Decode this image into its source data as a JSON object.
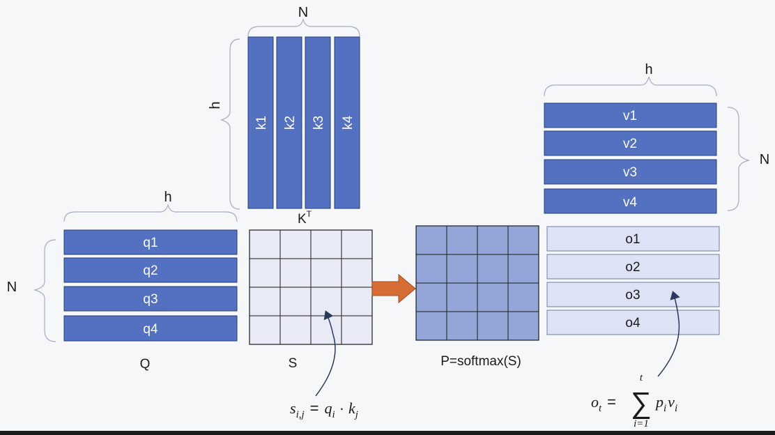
{
  "colors": {
    "block_fill": "#5470c0",
    "block_stroke": "#253f7a",
    "s_fill": "#e8eaf6",
    "p_fill": "#94a5d8",
    "o_fill": "#dde3f5",
    "arrow_fill": "#d56d35",
    "brace": "#a4acc4",
    "text_on_dark": "#ffffff",
    "text": "#1a1a1a"
  },
  "k_matrix": {
    "size_label_top": "N",
    "size_label_side": "h",
    "label": "K",
    "label_superscript": "T",
    "columns": [
      "k1",
      "k2",
      "k3",
      "k4"
    ]
  },
  "q_matrix": {
    "size_label_top": "h",
    "size_label_side": "N",
    "label": "Q",
    "rows": [
      "q1",
      "q2",
      "q3",
      "q4"
    ]
  },
  "v_matrix": {
    "size_label_top": "h",
    "size_label_side": "N",
    "rows": [
      "v1",
      "v2",
      "v3",
      "v4"
    ]
  },
  "s_matrix": {
    "label": "S",
    "grid_rows": 4,
    "grid_cols": 4
  },
  "p_matrix": {
    "label": "P=softmax(S)",
    "grid_rows": 4,
    "grid_cols": 4
  },
  "o_matrix": {
    "rows": [
      "o1",
      "o2",
      "o3",
      "o4"
    ]
  },
  "formulas": {
    "score": {
      "lhs": "s",
      "lhs_sub": "i,j",
      "eq": "=",
      "a": "q",
      "a_sub": "i",
      "dot": "·",
      "b": "k",
      "b_sub": "j"
    },
    "output": {
      "lhs": "o",
      "lhs_sub": "t",
      "eq": "=",
      "sum": "∑",
      "upper": "t",
      "lower": "i=1",
      "term_p": "p",
      "term_p_sub": "i",
      "term_v": "v",
      "term_v_sub": "i"
    }
  }
}
